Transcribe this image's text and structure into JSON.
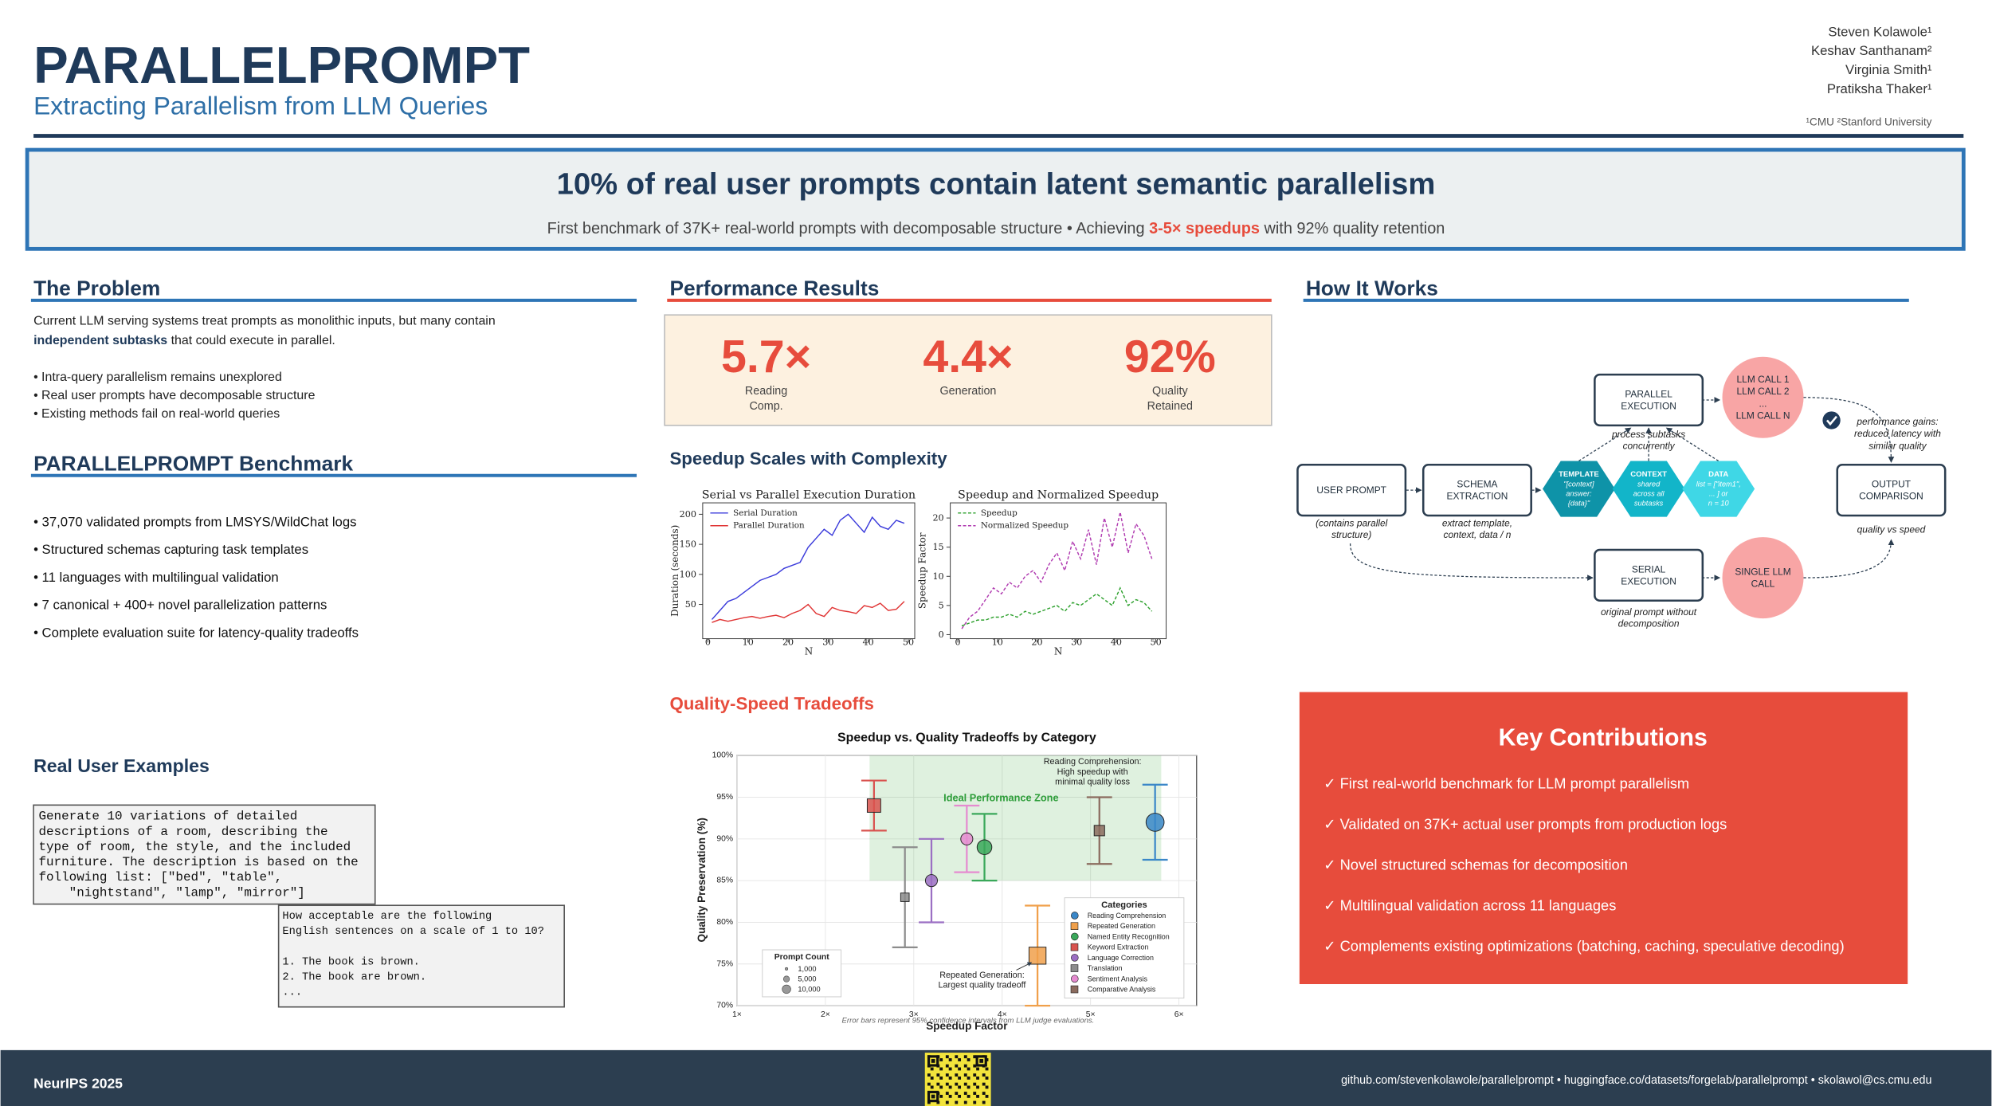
{
  "header": {
    "title": "PARALLELPROMPT",
    "subtitle": "Extracting Parallelism from LLM Queries",
    "authors": [
      "Steven Kolawole¹",
      "Keshav Santhanam²",
      "Virginia Smith¹",
      "Pratiksha Thaker¹"
    ],
    "affiliations": "¹CMU ²Stanford University"
  },
  "banner": {
    "headline": "10% of real user prompts contain latent semantic parallelism",
    "subline": {
      "before": "First benchmark of 37K+ real-world prompts with decomposable structure • Achieving ",
      "highlight": "3-5× speedups",
      "after": " with 92% quality retention"
    }
  },
  "problem": {
    "heading": "The Problem",
    "line1": "Current LLM serving systems treat prompts as monolithic inputs, but many contain",
    "bold": "independent subtasks",
    "rest": " that could execute in parallel.",
    "bullets": [
      "• Intra-query parallelism remains unexplored",
      "• Real user prompts have decomposable structure",
      "• Existing methods fail on real-world queries"
    ]
  },
  "benchmark": {
    "heading": "PARALLELPROMPT Benchmark",
    "bullets": [
      "• 37,070 validated prompts from LMSYS/WildChat logs",
      "• Structured schemas capturing task templates",
      "• 11 languages with multilingual validation",
      "• 7 canonical + 400+ novel parallelization patterns",
      "• Complete evaluation suite for latency-quality tradeoffs"
    ]
  },
  "examples": {
    "heading": "Real User Examples",
    "example1": [
      "Generate 10 variations of detailed",
      "descriptions of a room, describing the",
      "type of room, the style, and the included",
      "furniture. The description is based on the",
      "following list: [\"bed\", \"table\",",
      "    \"nightstand\", \"lamp\", \"mirror\"]"
    ],
    "example2": [
      "How acceptable are the following",
      "English sentences on a scale of 1 to 10?",
      "1. The book is brown.",
      "2. The book are brown.",
      "..."
    ]
  },
  "performance": {
    "heading": "Performance Results",
    "stats": [
      {
        "value": "5.7×",
        "label": [
          "Reading",
          "Comp."
        ]
      },
      {
        "value": "4.4×",
        "label": [
          "Generation"
        ]
      },
      {
        "value": "92%",
        "label": [
          "Quality",
          "Retained"
        ]
      }
    ],
    "speedup_heading": "Speedup Scales with Complexity",
    "tradeoff_heading": "Quality-Speed Tradeoffs"
  },
  "how": {
    "heading": "How It Works",
    "nodes": [
      {
        "label": [
          "USER PROMPT"
        ],
        "caption": [
          "(contains parallel",
          "structure)"
        ]
      },
      {
        "label": [
          "SCHEMA",
          "EXTRACTION"
        ],
        "caption": [
          "extract template,",
          "context, data / n"
        ]
      },
      {
        "label": [
          "TEMPLATE",
          "\"[context]",
          "answer:",
          "{data}\""
        ]
      },
      {
        "label": [
          "CONTEXT",
          "shared",
          "across all",
          "subtasks"
        ]
      },
      {
        "label": [
          "DATA",
          "list = [\"item1\",",
          "... ] or",
          "n = 10"
        ]
      },
      {
        "label": [
          "PARALLEL",
          "EXECUTION"
        ],
        "caption": [
          "process subtasks",
          "concurrently"
        ]
      },
      {
        "label": [
          "LLM CALL 1",
          "LLM CALL 2",
          "...",
          "LLM CALL N"
        ]
      },
      {
        "label": [
          "OUTPUT",
          "COMPARISON"
        ],
        "caption": [
          "quality vs speed"
        ]
      },
      {
        "label": [
          "SERIAL",
          "EXECUTION"
        ],
        "caption": [
          "original prompt without",
          "decomposition"
        ]
      },
      {
        "label": [
          "SINGLE LLM",
          "CALL"
        ]
      }
    ],
    "note": [
      "performance gains:",
      "reduced latency with",
      "similar quality"
    ]
  },
  "contributions": {
    "heading": "Key Contributions",
    "items": [
      "✓ First real-world benchmark for LLM prompt parallelism",
      "✓ Validated on 37K+ actual user prompts from production logs",
      "✓ Novel structured schemas for decomposition",
      "✓ Multilingual validation across 11 languages",
      "✓ Complements existing optimizations (batching, caching, speculative decoding)"
    ]
  },
  "footer": {
    "venue": "NeurIPS 2025",
    "links": "github.com/stevenkolawole/parallelprompt  •  huggingface.co/datasets/forgelab/parallelprompt  •  skolawol@cs.cmu.edu"
  },
  "chart_data": [
    {
      "type": "line",
      "title": "Serial vs Parallel Execution Duration",
      "xlabel": "N",
      "ylabel": "Duration (seconds)",
      "x": [
        1,
        3,
        5,
        7,
        9,
        11,
        13,
        15,
        17,
        19,
        21,
        23,
        25,
        27,
        29,
        31,
        33,
        35,
        37,
        39,
        41,
        43,
        45,
        47,
        49
      ],
      "series": [
        {
          "name": "Serial Duration",
          "color": "#3b3bdb",
          "linestyle": "solid",
          "values": [
            25,
            40,
            55,
            60,
            70,
            80,
            90,
            95,
            100,
            110,
            115,
            120,
            145,
            160,
            175,
            165,
            190,
            200,
            185,
            170,
            195,
            180,
            175,
            190,
            185
          ]
        },
        {
          "name": "Parallel Duration",
          "color": "#e03434",
          "linestyle": "solid",
          "values": [
            20,
            25,
            22,
            25,
            28,
            30,
            27,
            30,
            32,
            28,
            35,
            40,
            50,
            35,
            30,
            45,
            40,
            38,
            35,
            48,
            45,
            52,
            40,
            42,
            55
          ]
        }
      ],
      "xlim": [
        -1.3,
        51.6
      ],
      "ylim": [
        -7,
        219
      ],
      "xticks": [
        0,
        10,
        20,
        30,
        40,
        50
      ],
      "yticks": [
        50,
        100,
        150,
        200
      ],
      "legend": "upper left"
    },
    {
      "type": "line",
      "title": "Speedup and Normalized Speedup",
      "xlabel": "N",
      "ylabel": "Speedup Factor",
      "x": [
        1,
        3,
        5,
        7,
        9,
        11,
        13,
        15,
        17,
        19,
        21,
        23,
        25,
        27,
        29,
        31,
        33,
        35,
        37,
        39,
        41,
        43,
        45,
        47,
        49
      ],
      "series": [
        {
          "name": "Speedup",
          "color": "#2ca02c",
          "linestyle": "dashed",
          "values": [
            1.5,
            2,
            2.5,
            2.5,
            3,
            3,
            3.5,
            3,
            4,
            3.5,
            4,
            4.5,
            5,
            4,
            5.5,
            5,
            6,
            7,
            6,
            5,
            8,
            5,
            6,
            5.5,
            4
          ]
        },
        {
          "name": "Normalized Speedup",
          "color": "#b03ab0",
          "linestyle": "dashed",
          "values": [
            1,
            3,
            4,
            6,
            8,
            7,
            9,
            8,
            10,
            11,
            9,
            12,
            14,
            11,
            16,
            13,
            18,
            12,
            20,
            15,
            21,
            14,
            19,
            17,
            13
          ]
        }
      ],
      "xlim": [
        -1.9,
        52.6
      ],
      "ylim": [
        -0.7,
        22.6
      ],
      "xticks": [
        0,
        10,
        20,
        30,
        40,
        50
      ],
      "yticks": [
        0,
        5,
        10,
        15,
        20
      ],
      "legend": "upper left"
    },
    {
      "type": "scatter",
      "title": "Speedup vs. Quality Tradeoffs by Category",
      "xlabel": "Speedup Factor",
      "ylabel": "Quality Preservation (%)",
      "xlim": [
        1,
        6.2
      ],
      "ylim": [
        70,
        100
      ],
      "xticks": [
        {
          "value": 1,
          "label": "1×"
        },
        {
          "value": 2,
          "label": "2×"
        },
        {
          "value": 3,
          "label": "3×"
        },
        {
          "value": 4,
          "label": "4×"
        },
        {
          "value": 5,
          "label": "5×"
        },
        {
          "value": 6,
          "label": "6×"
        }
      ],
      "yticks": [
        {
          "value": 70,
          "label": "70%"
        },
        {
          "value": 75,
          "label": "75%"
        },
        {
          "value": 80,
          "label": "80%"
        },
        {
          "value": 85,
          "label": "85%"
        },
        {
          "value": 90,
          "label": "90%"
        },
        {
          "value": 95,
          "label": "95%"
        },
        {
          "value": 100,
          "label": "100%"
        }
      ],
      "grid": true,
      "zone": {
        "xlim": [
          2.5,
          5.8
        ],
        "ylim": [
          85,
          100
        ]
      },
      "series": [
        {
          "name": "Reading Comprehension",
          "color": "#3a87c8",
          "marker": "circle",
          "x": 5.73,
          "y": 92,
          "error": 4.5,
          "size": 9000
        },
        {
          "name": "Repeated Generation",
          "color": "#f0a04b",
          "marker": "square",
          "x": 4.4,
          "y": 76,
          "error": 6,
          "size": 8000
        },
        {
          "name": "Named Entity Recognition",
          "color": "#3aa85a",
          "marker": "circle",
          "x": 3.8,
          "y": 89,
          "error": 4,
          "size": 6000
        },
        {
          "name": "Keyword Extraction",
          "color": "#d9534f",
          "marker": "square",
          "x": 2.55,
          "y": 94,
          "error": 3,
          "size": 5000
        },
        {
          "name": "Language Correction",
          "color": "#9b6fc3",
          "marker": "circle",
          "x": 3.2,
          "y": 85,
          "error": 5,
          "size": 4000
        },
        {
          "name": "Translation",
          "color": "#8c8c8c",
          "marker": "square",
          "x": 2.9,
          "y": 83,
          "error": 6,
          "size": 2000
        },
        {
          "name": "Sentiment Analysis",
          "color": "#e58bd0",
          "marker": "circle",
          "x": 3.6,
          "y": 90,
          "error": 4,
          "size": 4000
        },
        {
          "name": "Comparative Analysis",
          "color": "#8b6b5e",
          "marker": "square",
          "x": 5.1,
          "y": 91,
          "error": 4,
          "size": 3000
        }
      ],
      "legend_title": "Categories",
      "size_legend": {
        "title": "Prompt Count",
        "entries": [
          {
            "value": 1000,
            "label": "1,000"
          },
          {
            "value": 5000,
            "label": "5,000"
          },
          {
            "value": 10000,
            "label": "10,000"
          }
        ]
      },
      "zone_label": "Ideal Performance Zone",
      "note_rc": [
        "Reading Comprehension:",
        "High speedup with",
        "minimal quality loss"
      ],
      "note_rg": [
        "Repeated Generation:",
        "Largest quality tradeoff"
      ],
      "footnote": "Error bars represent 95% confidence intervals from LLM judge evaluations."
    }
  ]
}
